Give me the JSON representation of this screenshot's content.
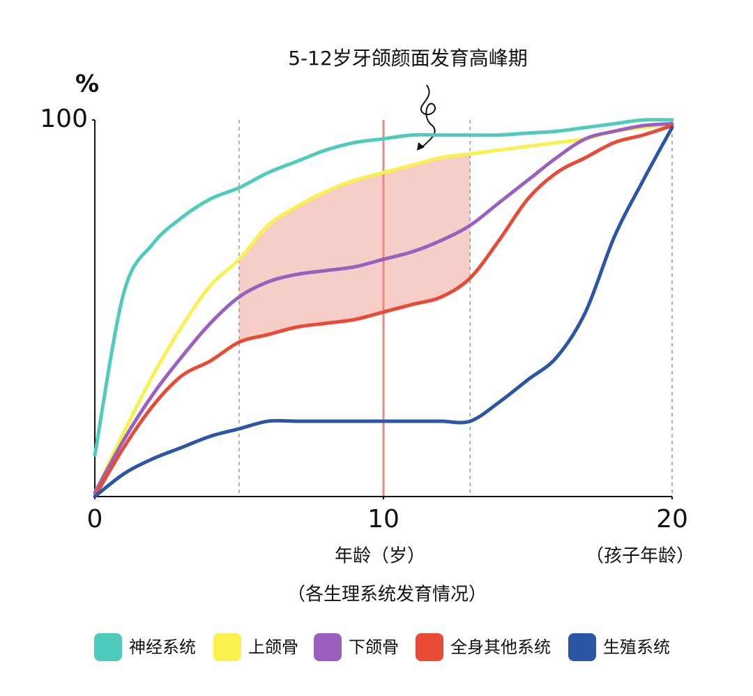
{
  "chart_data": {
    "type": "line",
    "annotation": "5-12岁牙颌颜面发育高峰期",
    "ylabel": "%",
    "xlabel": "年龄（岁）",
    "xlabel_right": "（孩子年龄）",
    "caption": "（各生理系统发育情况）",
    "x": [
      0,
      1,
      2,
      3,
      4,
      5,
      6,
      7,
      8,
      9,
      10,
      11,
      12,
      13,
      14,
      15,
      16,
      17,
      18,
      19,
      20
    ],
    "series": [
      {
        "name": "神经系统",
        "color": "#4ecbbb",
        "values": [
          11,
          54,
          67,
          74,
          79,
          82,
          86,
          89,
          92,
          94,
          95,
          96,
          96,
          96,
          96,
          96.5,
          97,
          98,
          99,
          100,
          100
        ]
      },
      {
        "name": "上颌骨",
        "color": "#f9f14d",
        "values": [
          1,
          17,
          32,
          45,
          56,
          63,
          72,
          77,
          81,
          84,
          86,
          88,
          90,
          91,
          92,
          93,
          94,
          95,
          97,
          98,
          99
        ]
      },
      {
        "name": "下颌骨",
        "color": "#9b5fc0",
        "values": [
          1,
          15,
          27,
          37,
          46,
          53,
          57,
          59,
          60,
          61,
          63,
          65,
          68,
          72,
          78,
          84,
          90,
          95,
          97,
          98.5,
          99
        ]
      },
      {
        "name": "全身其他系统",
        "color": "#e84a35",
        "values": [
          0,
          13,
          24,
          32,
          36,
          41,
          43,
          45,
          46,
          47,
          49,
          51,
          53,
          58,
          68,
          79,
          86,
          90,
          94,
          96,
          98.5
        ]
      },
      {
        "name": "生殖系统",
        "color": "#2b55a5",
        "values": [
          0,
          6,
          10,
          13,
          16,
          18,
          20,
          20,
          20,
          20,
          20,
          20,
          20,
          20,
          25,
          31,
          37,
          49,
          69,
          84,
          98
        ]
      }
    ],
    "xlim": [
      0,
      20
    ],
    "xticks": [
      0,
      10,
      20
    ],
    "ylim": [
      0,
      100
    ],
    "yticks": [
      100
    ],
    "dashed_lines_x": [
      5,
      13,
      20
    ],
    "highlight_line_x": 10,
    "highlight_color": "#e88a80",
    "shade": {
      "xlim": [
        5,
        13
      ],
      "between": [
        1,
        3
      ],
      "color": "#f6cdc7"
    },
    "legend": "bottom"
  }
}
